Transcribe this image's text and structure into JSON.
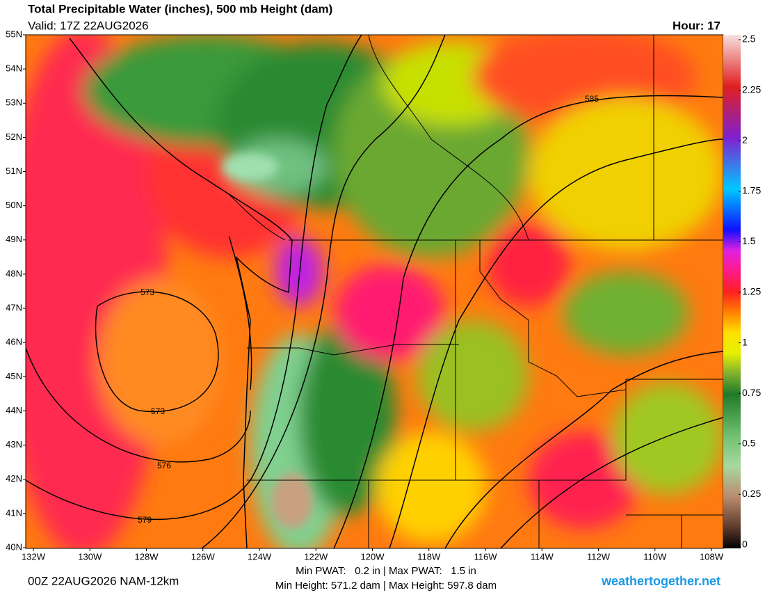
{
  "header": {
    "title": "Total Precipitable Water (inches), 500 mb Height (dam)",
    "valid": "Valid: 17Z 22AUG2026",
    "hour": "Hour: 17"
  },
  "map": {
    "lat_labels": [
      "55N",
      "54N",
      "53N",
      "52N",
      "51N",
      "50N",
      "49N",
      "48N",
      "47N",
      "46N",
      "45N",
      "44N",
      "43N",
      "42N",
      "41N",
      "40N"
    ],
    "lon_labels": [
      "132W",
      "130W",
      "128W",
      "126W",
      "124W",
      "122W",
      "120W",
      "118W",
      "116W",
      "114W",
      "112W",
      "110W",
      "108W"
    ],
    "contour_labels": [
      573,
      573,
      576,
      579,
      585
    ]
  },
  "colorbar": {
    "range": [
      0,
      2.5
    ],
    "ticks": [
      0,
      0.25,
      0.5,
      0.75,
      1,
      1.25,
      1.5,
      1.75,
      2,
      2.25,
      2.5
    ]
  },
  "footer": {
    "run": "00Z 22AUG2026 NAM-12km",
    "pwat": "Min PWAT:   0.2 in | Max PWAT:   1.5 in",
    "height": "Min Height: 571.2 dam | Max Height: 597.8 dam",
    "site": "weathertogether.net"
  }
}
